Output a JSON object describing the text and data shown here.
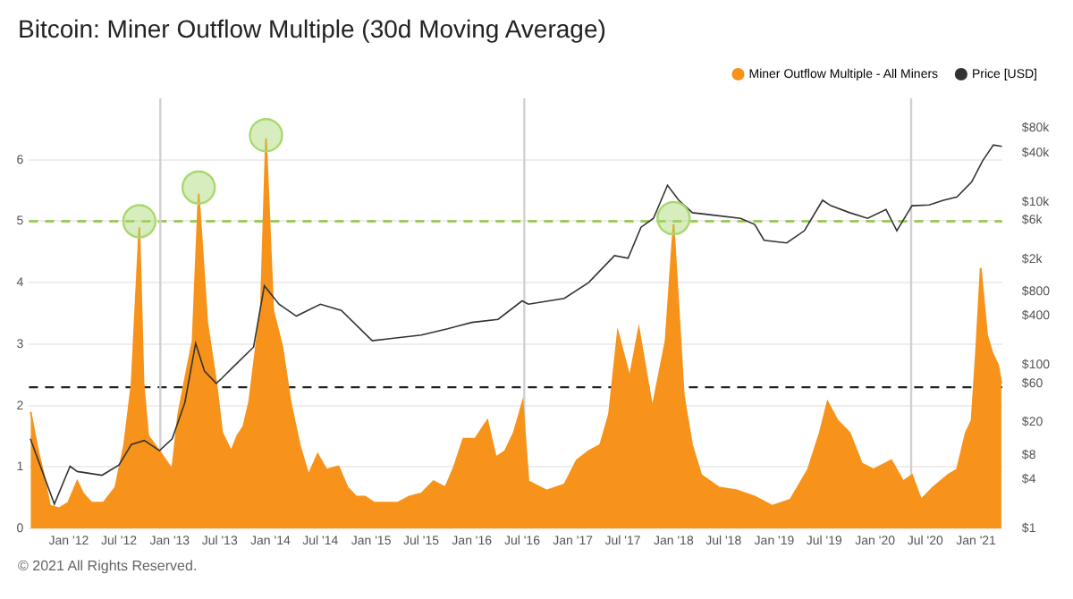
{
  "chart_data": {
    "type": "area",
    "title": "Bitcoin: Miner Outflow Multiple (30d Moving Average)",
    "annotations": [
      "© 2021 All Rights Reserved."
    ],
    "xlim": [
      "2011-08-10",
      "2021-04-06"
    ],
    "xticks": [
      {
        "value": "2012-01-01",
        "label": "Jan '12"
      },
      {
        "value": "2012-07-01",
        "label": "Jul '12"
      },
      {
        "value": "2013-01-01",
        "label": "Jan '13"
      },
      {
        "value": "2013-07-01",
        "label": "Jul '13"
      },
      {
        "value": "2014-01-01",
        "label": "Jan '14"
      },
      {
        "value": "2014-07-01",
        "label": "Jul '14"
      },
      {
        "value": "2015-01-01",
        "label": "Jan '15"
      },
      {
        "value": "2015-07-01",
        "label": "Jul '15"
      },
      {
        "value": "2016-01-01",
        "label": "Jan '16"
      },
      {
        "value": "2016-07-01",
        "label": "Jul '16"
      },
      {
        "value": "2017-01-01",
        "label": "Jan '17"
      },
      {
        "value": "2017-07-01",
        "label": "Jul '17"
      },
      {
        "value": "2018-01-01",
        "label": "Jan '18"
      },
      {
        "value": "2018-07-01",
        "label": "Jul '18"
      },
      {
        "value": "2019-01-01",
        "label": "Jan '19"
      },
      {
        "value": "2019-07-01",
        "label": "Jul '19"
      },
      {
        "value": "2020-01-01",
        "label": "Jan '20"
      },
      {
        "value": "2020-07-01",
        "label": "Jul '20"
      },
      {
        "value": "2021-01-01",
        "label": "Jan '21"
      }
    ],
    "ylim": [
      0,
      7
    ],
    "yticks": [
      0,
      1,
      2,
      3,
      4,
      5,
      6
    ],
    "y2lim": [
      1,
      186000
    ],
    "log": "y2",
    "y2ticks": [
      {
        "value": 1,
        "label": "$1"
      },
      {
        "value": 4,
        "label": "$4"
      },
      {
        "value": 8,
        "label": "$8"
      },
      {
        "value": 20,
        "label": "$20"
      },
      {
        "value": 60,
        "label": "$60"
      },
      {
        "value": 100,
        "label": "$100"
      },
      {
        "value": 400,
        "label": "$400"
      },
      {
        "value": 800,
        "label": "$800"
      },
      {
        "value": 2000,
        "label": "$2k"
      },
      {
        "value": 6000,
        "label": "$6k"
      },
      {
        "value": 10000,
        "label": "$10k"
      },
      {
        "value": 40000,
        "label": "$40k"
      },
      {
        "value": 80000,
        "label": "$80k"
      }
    ],
    "grid": "y",
    "legend": "top right",
    "ref_lines": [
      {
        "axis": "y",
        "value": 5,
        "color": "#8dc63f",
        "line_style": "dashed"
      },
      {
        "axis": "y",
        "value": 2.3,
        "color": "#222222",
        "line_style": "dashed"
      },
      {
        "axis": "x",
        "value": "2012-11-28",
        "color": "#d0d0d0",
        "line_style": "solid"
      },
      {
        "axis": "x",
        "value": "2016-07-09",
        "color": "#d0d0d0",
        "line_style": "solid"
      },
      {
        "axis": "x",
        "value": "2020-05-11",
        "color": "#d0d0d0",
        "line_style": "solid"
      }
    ],
    "series": [
      {
        "type": "area",
        "name": "Miner Outflow Multiple - All Miners",
        "color": "#f7931a",
        "x": [
          "2011-08-16",
          "2011-09-12",
          "2011-10-03",
          "2011-10-25",
          "2011-11-27",
          "2011-12-30",
          "2012-02-01",
          "2012-02-22",
          "2012-03-24",
          "2012-05-06",
          "2012-06-18",
          "2012-07-20",
          "2012-08-16",
          "2012-09-13",
          "2012-09-28",
          "2012-10-15",
          "2012-11-25",
          "2013-01-10",
          "2013-02-01",
          "2013-03-03",
          "2013-03-25",
          "2013-04-16",
          "2013-05-17",
          "2013-06-19",
          "2013-07-10",
          "2013-08-12",
          "2013-09-03",
          "2013-09-25",
          "2013-10-16",
          "2013-11-07",
          "2013-11-28",
          "2013-12-16",
          "2014-01-11",
          "2014-02-13",
          "2014-03-15",
          "2014-04-17",
          "2014-05-19",
          "2014-06-21",
          "2014-07-23",
          "2014-09-05",
          "2014-10-07",
          "2014-11-08",
          "2014-12-10",
          "2015-01-12",
          "2015-02-24",
          "2015-04-07",
          "2015-05-19",
          "2015-07-02",
          "2015-08-15",
          "2015-09-27",
          "2015-10-29",
          "2015-12-01",
          "2016-01-13",
          "2016-02-26",
          "2016-03-28",
          "2016-04-30",
          "2016-06-01",
          "2016-07-03",
          "2016-07-24",
          "2016-09-28",
          "2016-12-02",
          "2017-01-15",
          "2017-02-27",
          "2017-04-10",
          "2017-05-12",
          "2017-06-13",
          "2017-07-26",
          "2017-08-28",
          "2017-10-16",
          "2017-12-03",
          "2018-01-01",
          "2018-02-07",
          "2018-03-09",
          "2018-04-11",
          "2018-06-14",
          "2018-08-18",
          "2018-10-22",
          "2018-12-25",
          "2019-02-28",
          "2019-05-03",
          "2019-06-15",
          "2019-07-13",
          "2019-08-18",
          "2019-10-01",
          "2019-11-14",
          "2019-12-26",
          "2020-02-29",
          "2020-04-12",
          "2020-05-14",
          "2020-06-16",
          "2020-07-29",
          "2020-09-21",
          "2020-10-24",
          "2020-11-25",
          "2020-12-16",
          "2021-01-01",
          "2021-01-18",
          "2021-02-10",
          "2021-03-01",
          "2021-03-22",
          "2021-04-03"
        ],
        "values": [
          1.9,
          1.26,
          0.87,
          0.37,
          0.33,
          0.42,
          0.77,
          0.57,
          0.42,
          0.42,
          0.67,
          1.36,
          2.36,
          4.9,
          2.36,
          1.51,
          1.26,
          0.96,
          1.86,
          2.56,
          3.05,
          5.45,
          3.35,
          2.36,
          1.56,
          1.26,
          1.51,
          1.66,
          2.06,
          2.86,
          3.65,
          6.35,
          3.55,
          2.96,
          2.06,
          1.36,
          0.87,
          1.21,
          0.96,
          1.01,
          0.67,
          0.52,
          0.52,
          0.42,
          0.42,
          0.42,
          0.52,
          0.57,
          0.77,
          0.67,
          1.01,
          1.46,
          1.46,
          1.76,
          1.16,
          1.26,
          1.56,
          2.06,
          0.77,
          0.62,
          0.72,
          1.11,
          1.26,
          1.36,
          1.86,
          3.2,
          2.46,
          3.25,
          1.96,
          3.05,
          4.95,
          2.16,
          1.36,
          0.87,
          0.67,
          0.62,
          0.52,
          0.37,
          0.47,
          0.96,
          1.56,
          2.06,
          1.76,
          1.56,
          1.06,
          0.96,
          1.11,
          0.77,
          0.87,
          0.47,
          0.67,
          0.87,
          0.96,
          1.56,
          1.76,
          2.86,
          4.24,
          3.15,
          2.86,
          2.66,
          2.36
        ]
      },
      {
        "type": "line",
        "name": "Price [USD]",
        "color": "#333333",
        "axis": "y2",
        "x": [
          "2011-08-15",
          "2011-11-10",
          "2012-01-06",
          "2012-02-01",
          "2012-05-01",
          "2012-07-01",
          "2012-08-15",
          "2012-10-01",
          "2012-11-25",
          "2013-01-10",
          "2013-02-25",
          "2013-04-05",
          "2013-05-07",
          "2013-06-19",
          "2013-07-10",
          "2013-08-25",
          "2013-11-01",
          "2013-12-10",
          "2014-02-01",
          "2014-04-05",
          "2014-07-01",
          "2014-09-15",
          "2015-01-05",
          "2015-03-25",
          "2015-07-02",
          "2015-10-05",
          "2016-01-01",
          "2016-04-05",
          "2016-07-01",
          "2016-07-24",
          "2016-12-01",
          "2017-02-27",
          "2017-06-01",
          "2017-07-20",
          "2017-09-05",
          "2017-10-20",
          "2017-12-10",
          "2018-01-20",
          "2018-03-10",
          "2018-05-25",
          "2018-09-01",
          "2018-10-22",
          "2018-11-25",
          "2019-02-15",
          "2019-04-20",
          "2019-06-25",
          "2019-07-25",
          "2019-10-01",
          "2019-12-05",
          "2020-02-10",
          "2020-03-20",
          "2020-05-14",
          "2020-07-15",
          "2020-09-05",
          "2020-10-24",
          "2020-12-16",
          "2021-01-25",
          "2021-03-05",
          "2021-04-05"
        ],
        "values": [
          12.6,
          2,
          5.8,
          5,
          4.5,
          6,
          10.7,
          12,
          9,
          12.6,
          35,
          186,
          85,
          60,
          70,
          100,
          167,
          940,
          560,
          400,
          560,
          470,
          200,
          215,
          235,
          280,
          335,
          365,
          615,
          560,
          660,
          1030,
          2200,
          2050,
          4900,
          6300,
          16000,
          10500,
          7400,
          6900,
          6300,
          5300,
          3400,
          3150,
          4450,
          10500,
          9000,
          7400,
          6300,
          8100,
          4450,
          9000,
          9200,
          10500,
          11500,
          17600,
          32000,
          50000,
          48000
        ]
      },
      {
        "type": "scatter",
        "color": "#a8d86e",
        "marker": "circle",
        "x": [
          "2012-09-13",
          "2013-04-16",
          "2013-12-16",
          "2018-01-01"
        ],
        "values": [
          5.0,
          5.55,
          6.4,
          5.05
        ]
      }
    ]
  }
}
